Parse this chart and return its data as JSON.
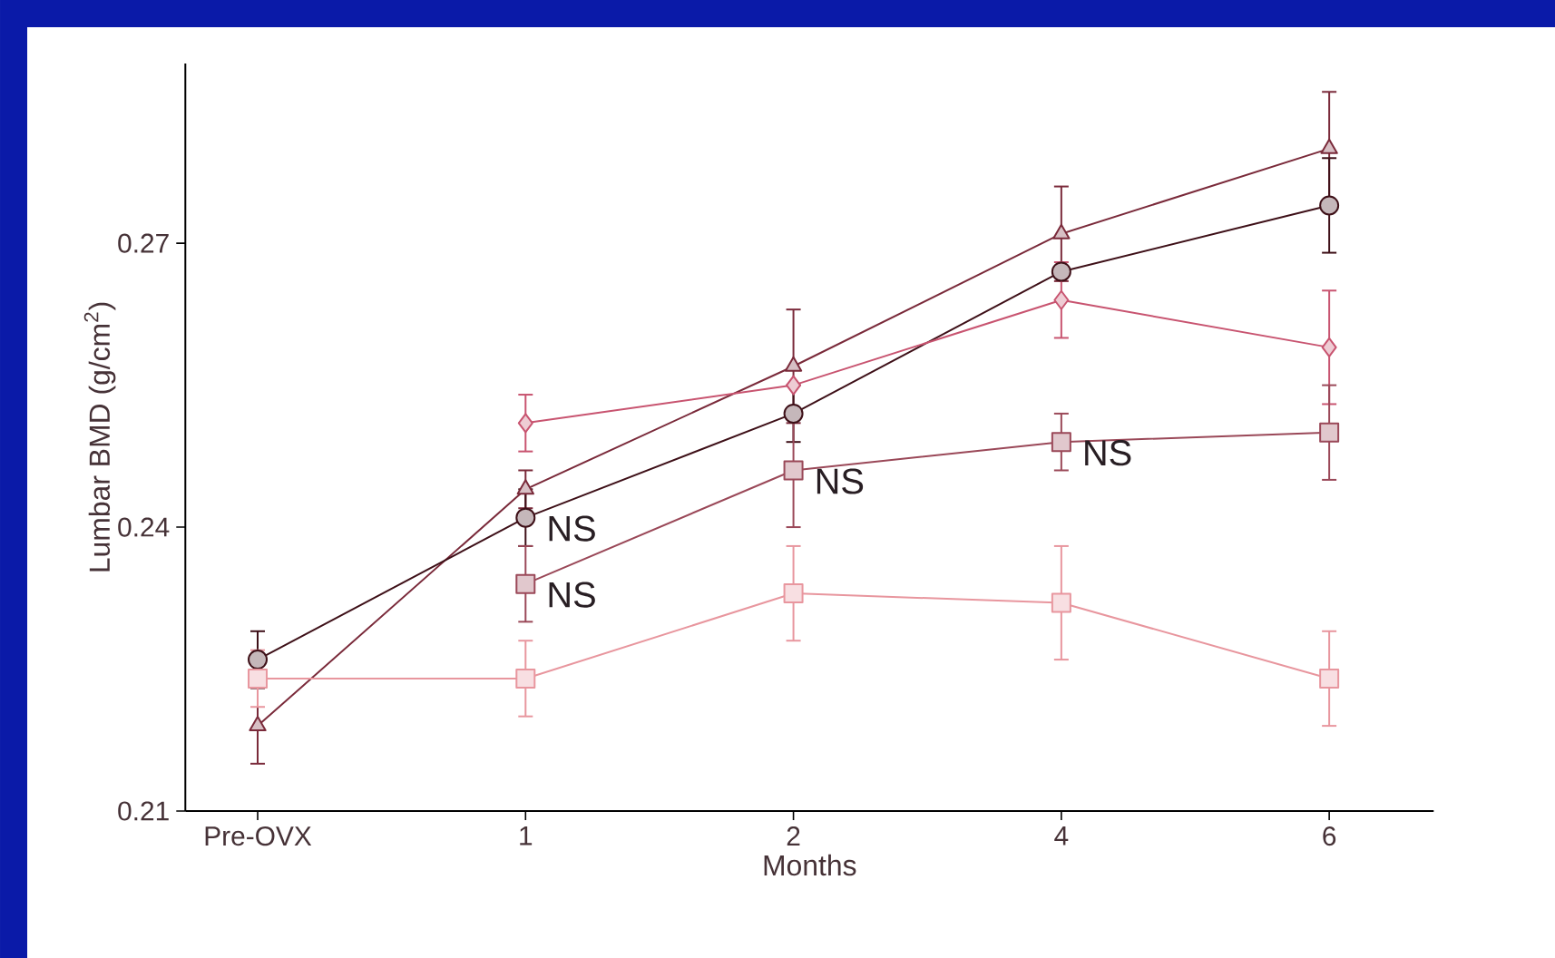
{
  "chart_data": {
    "type": "line",
    "xlabel": "Months",
    "ylabel": "Lumbar BMD (g/cm$^{2}$)",
    "categories": [
      "Pre-OVX",
      "1",
      "2",
      "4",
      "6"
    ],
    "ylim": [
      0.21,
      0.289
    ],
    "yticks": [
      0.21,
      0.24,
      0.27
    ],
    "grid": false,
    "series": [
      {
        "color": "#7a2a3a",
        "marker": "triangle",
        "values": [
          0.219,
          0.244,
          0.257,
          0.271,
          0.28
        ],
        "errors": [
          0.004,
          0.002,
          0.006,
          0.005,
          0.006
        ]
      },
      {
        "color": "#3e1018",
        "marker": "circle",
        "values": [
          0.226,
          0.241,
          0.252,
          0.267,
          0.274
        ],
        "errors": [
          0.003,
          0.003,
          0.003,
          null,
          0.005
        ]
      },
      {
        "color": "#c85470",
        "marker": "diamond",
        "values": [
          null,
          0.251,
          0.255,
          0.264,
          0.259
        ],
        "errors": [
          null,
          0.003,
          null,
          0.004,
          0.006
        ]
      },
      {
        "color": "#9a4858",
        "marker": "square",
        "values": [
          null,
          0.234,
          0.246,
          0.249,
          0.25
        ],
        "errors": [
          null,
          0.004,
          0.006,
          0.003,
          0.005
        ]
      },
      {
        "color": "#e8969e",
        "marker": "square",
        "values": [
          0.224,
          0.224,
          0.233,
          0.232,
          0.224
        ],
        "errors": [
          0.003,
          0.004,
          0.005,
          0.006,
          0.005
        ]
      }
    ],
    "annotations": [
      {
        "text": "NS",
        "x": "1",
        "y": 0.241
      },
      {
        "text": "NS",
        "x": "1",
        "y": 0.234
      },
      {
        "text": "NS",
        "x": "2",
        "y": 0.246
      },
      {
        "text": "NS",
        "x": "4",
        "y": 0.249
      }
    ]
  }
}
